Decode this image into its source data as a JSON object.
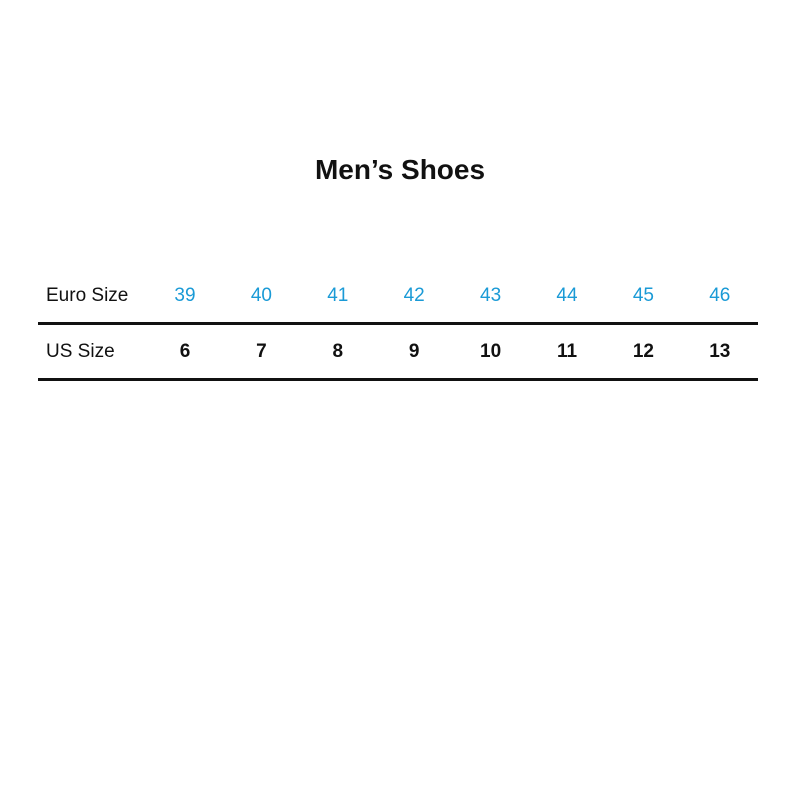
{
  "title": "Men’s Shoes",
  "accent_color": "#1a9ad6",
  "rows": [
    {
      "label": "Euro Size",
      "values": [
        "39",
        "40",
        "41",
        "42",
        "43",
        "44",
        "45",
        "46"
      ]
    },
    {
      "label": "US Size",
      "values": [
        "6",
        "7",
        "8",
        "9",
        "10",
        "11",
        "12",
        "13"
      ]
    }
  ]
}
